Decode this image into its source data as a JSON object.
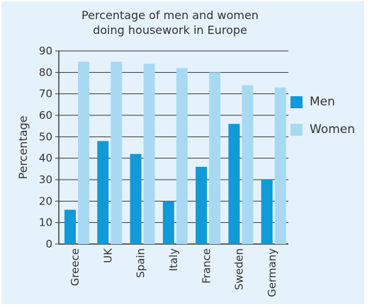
{
  "chart_data": {
    "type": "bar",
    "title": [
      "Percentage of men and women",
      "doing housework in Europe"
    ],
    "ylabel": "Percentage",
    "xlabel": "",
    "categories": [
      "Greece",
      "UK",
      "Spain",
      "Italy",
      "France",
      "Sweden",
      "Germany"
    ],
    "series": [
      {
        "name": "Men",
        "values": [
          16,
          48,
          42,
          20,
          36,
          56,
          30
        ],
        "color": "#0f9ad8"
      },
      {
        "name": "Women",
        "values": [
          85,
          85,
          84,
          82,
          80,
          74,
          73
        ],
        "color": "#a7d9f3"
      }
    ],
    "ylim": [
      0,
      90
    ],
    "yticks": [
      0,
      10,
      20,
      30,
      40,
      50,
      60,
      70,
      80,
      90
    ],
    "grid": true,
    "legend": "right"
  }
}
